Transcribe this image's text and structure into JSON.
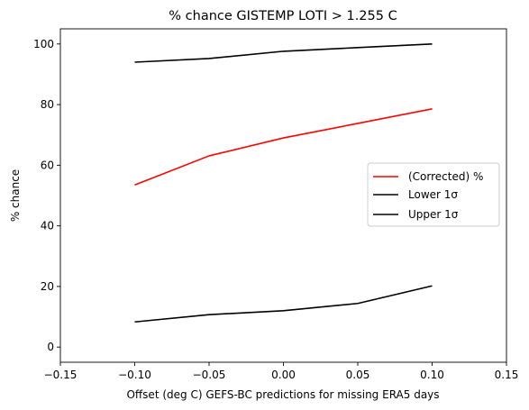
{
  "chart_data": {
    "type": "line",
    "title": "% chance GISTEMP LOTI > 1.255 C",
    "xlabel": "Offset (deg C) GEFS-BC predictions for missing ERA5 days",
    "ylabel": "% chance",
    "xlim": [
      -0.15,
      0.15
    ],
    "ylim": [
      -5,
      105
    ],
    "xticks": [
      -0.15,
      -0.1,
      -0.05,
      0.0,
      0.05,
      0.1,
      0.15
    ],
    "xtick_labels": [
      "−0.15",
      "−0.10",
      "−0.05",
      "0.00",
      "0.05",
      "0.10",
      "0.15"
    ],
    "yticks": [
      0,
      20,
      40,
      60,
      80,
      100
    ],
    "ytick_labels": [
      "0",
      "20",
      "40",
      "60",
      "80",
      "100"
    ],
    "grid": false,
    "legend_position": "center-right",
    "x": [
      -0.1,
      -0.05,
      0.0,
      0.05,
      0.1
    ],
    "series": [
      {
        "name": "(Corrected) %",
        "color": "#ff0000",
        "values": [
          53.5,
          63.1,
          69.0,
          73.8,
          78.6
        ]
      },
      {
        "name": "Lower 1σ",
        "color": "#000000",
        "values": [
          8.3,
          10.7,
          12.0,
          14.4,
          20.2
        ]
      },
      {
        "name": "Upper 1σ",
        "color": "#000000",
        "values": [
          94.0,
          95.2,
          97.6,
          98.8,
          100.0
        ]
      }
    ]
  }
}
